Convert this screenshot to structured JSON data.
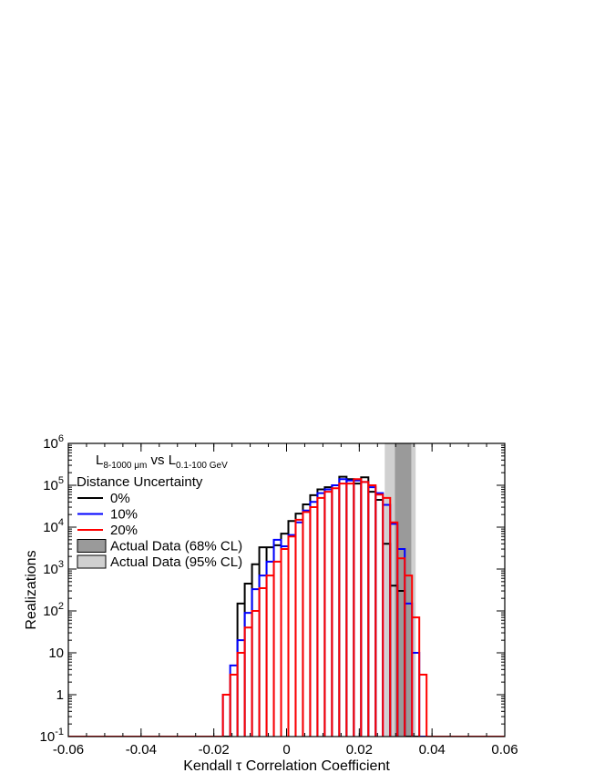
{
  "chart_data": {
    "type": "histogram",
    "title": "",
    "annotation": {
      "main_a": "L",
      "sub_a": "8-1000 μm",
      "mid": " vs ",
      "main_b": "L",
      "sub_b": "0.1-100 GeV"
    },
    "xlabel": "Kendall τ Correlation Coefficient",
    "ylabel": "Realizations",
    "x_scale": "linear",
    "y_scale": "log",
    "xlim": [
      -0.06,
      0.06
    ],
    "ylim": [
      0.1,
      1000000
    ],
    "x_ticks": [
      -0.06,
      -0.04,
      -0.02,
      0,
      0.02,
      0.04,
      0.06
    ],
    "x_tick_labels": [
      "-0.06",
      "-0.04",
      "-0.02",
      "0",
      "0.02",
      "0.04",
      "0.06"
    ],
    "y_ticks": [
      {
        "value": 0.1,
        "base": "10",
        "exp": "-1"
      },
      {
        "value": 1,
        "base": "1",
        "exp": ""
      },
      {
        "value": 10,
        "base": "10",
        "exp": ""
      },
      {
        "value": 100,
        "base": "10",
        "exp": "2"
      },
      {
        "value": 1000,
        "base": "10",
        "exp": "3"
      },
      {
        "value": 10000,
        "base": "10",
        "exp": "4"
      },
      {
        "value": 100000,
        "base": "10",
        "exp": "5"
      },
      {
        "value": 1000000,
        "base": "10",
        "exp": "6"
      }
    ],
    "grid": false,
    "legend": {
      "title": "Distance Uncertainty",
      "placement": "top-left",
      "entries": [
        {
          "label": "0%",
          "kind": "line",
          "color": "#000000"
        },
        {
          "label": "10%",
          "kind": "line",
          "color": "#0000ff"
        },
        {
          "label": "20%",
          "kind": "line",
          "color": "#ff0000"
        },
        {
          "label": "Actual Data (68% CL)",
          "kind": "box",
          "color": "#9a9a9a"
        },
        {
          "label": "Actual Data (95% CL)",
          "kind": "box",
          "color": "#d0d0d0"
        }
      ]
    },
    "bands": [
      {
        "name": "Actual Data (95% CL)",
        "x_range": [
          0.027,
          0.0355
        ],
        "color": "#d0d0d0"
      },
      {
        "name": "Actual Data (68% CL)",
        "x_range": [
          0.0298,
          0.0343
        ],
        "color": "#9a9a9a"
      }
    ],
    "series": [
      {
        "name": "0%",
        "color": "#000000",
        "x": [
          -0.0145,
          -0.0125,
          -0.0105,
          -0.0085,
          -0.0065,
          -0.0045,
          -0.0025,
          -0.0005,
          0.0015,
          0.0035,
          0.0055,
          0.0075,
          0.0095,
          0.0115,
          0.0135,
          0.0155,
          0.0175,
          0.0195,
          0.0215,
          0.0235,
          0.0255,
          0.0275,
          0.0295,
          0.0315,
          0.0335
        ],
        "y": [
          3,
          150,
          450,
          1300,
          3300,
          3300,
          3700,
          7000,
          14000,
          21000,
          35000,
          58000,
          80000,
          90000,
          100000,
          160000,
          140000,
          110000,
          155000,
          70000,
          45000,
          4000,
          400,
          300,
          0.1
        ]
      },
      {
        "name": "10%",
        "color": "#0000ff",
        "x": [
          -0.0185,
          -0.0165,
          -0.0145,
          -0.0125,
          -0.0105,
          -0.0085,
          -0.0065,
          -0.0045,
          -0.0025,
          -0.0005,
          0.0015,
          0.0035,
          0.0055,
          0.0075,
          0.0095,
          0.0115,
          0.0135,
          0.0155,
          0.0175,
          0.0195,
          0.0215,
          0.0235,
          0.0255,
          0.0275,
          0.0295,
          0.0315,
          0.0335,
          0.0355
        ],
        "y": [
          0.1,
          1,
          5,
          20,
          90,
          330,
          700,
          1500,
          5000,
          3500,
          6500,
          13000,
          25000,
          40000,
          65000,
          80000,
          100000,
          140000,
          130000,
          130000,
          120000,
          90000,
          65000,
          34000,
          12000,
          3000,
          150,
          10
        ]
      },
      {
        "name": "20%",
        "color": "#ff0000",
        "x": [
          -0.0165,
          -0.0145,
          -0.0125,
          -0.0105,
          -0.0085,
          -0.0065,
          -0.0045,
          -0.0025,
          -0.0005,
          0.0015,
          0.0035,
          0.0055,
          0.0075,
          0.0095,
          0.0115,
          0.0135,
          0.0155,
          0.0175,
          0.0195,
          0.0215,
          0.0235,
          0.0255,
          0.0275,
          0.0295,
          0.0315,
          0.0335,
          0.0355,
          0.0375
        ],
        "y": [
          1,
          3,
          10,
          40,
          100,
          350,
          700,
          1500,
          3000,
          6000,
          15000,
          23000,
          30000,
          50000,
          70000,
          85000,
          110000,
          110000,
          140000,
          120000,
          100000,
          60000,
          50000,
          13000,
          1800,
          700,
          70,
          3
        ]
      }
    ]
  }
}
